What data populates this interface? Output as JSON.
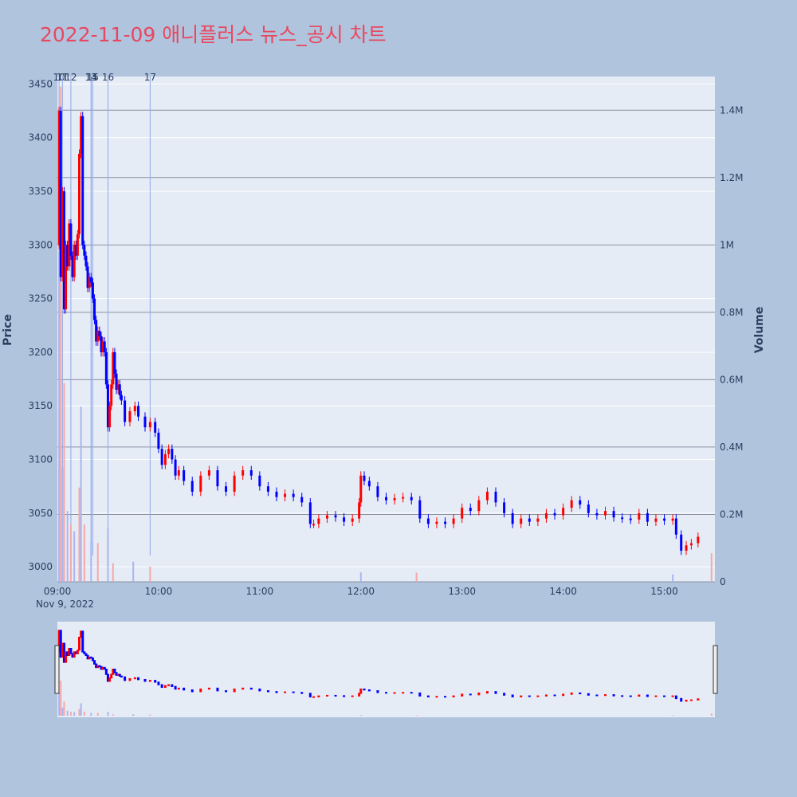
{
  "title": "2022-11-09 애니플러스 뉴스_공시 차트",
  "colors": {
    "page_bg": "#b0c4de",
    "plot_bg": "#e5ecf6",
    "up": "#ff0000",
    "down": "#0000ff",
    "title": "#e8475f",
    "marker_line": "#8fa8e8",
    "grid": "#ffffff",
    "volume_grid": "#8a8fa0"
  },
  "chart_data": {
    "type": "candlestick",
    "xlabel": "",
    "ylabel": "Price",
    "y2label": "Volume",
    "ylim": [
      2986,
      3457
    ],
    "y2lim": [
      0,
      1500000
    ],
    "y_ticks": [
      3000,
      3050,
      3100,
      3150,
      3200,
      3250,
      3300,
      3350,
      3400,
      3450
    ],
    "y2_ticks": [
      0,
      200000,
      400000,
      600000,
      800000,
      1000000,
      1200000,
      1400000
    ],
    "y2_tick_labels": [
      "0",
      "0.2M",
      "0.4M",
      "0.6M",
      "0.8M",
      "1M",
      "1.2M",
      "1.4M"
    ],
    "x_ticks": [
      "09:00",
      "10:00",
      "11:00",
      "12:00",
      "13:00",
      "14:00",
      "15:00"
    ],
    "x_date_label": "Nov 9, 2022",
    "x_range": [
      "09:00",
      "15:30"
    ],
    "news_markers": [
      {
        "label": "10",
        "time": "09:01"
      },
      {
        "label": "11",
        "time": "09:03"
      },
      {
        "label": "12",
        "time": "09:08"
      },
      {
        "label": "13",
        "time": "09:20"
      },
      {
        "label": "14",
        "time": "09:20"
      },
      {
        "label": "15",
        "time": "09:21"
      },
      {
        "label": "16",
        "time": "09:30"
      },
      {
        "label": "17",
        "time": "09:55"
      }
    ],
    "price_path": [
      [
        "09:00",
        3300
      ],
      [
        "09:01",
        3425
      ],
      [
        "09:02",
        3270
      ],
      [
        "09:03",
        3350
      ],
      [
        "09:04",
        3240
      ],
      [
        "09:05",
        3300
      ],
      [
        "09:06",
        3280
      ],
      [
        "09:07",
        3320
      ],
      [
        "09:08",
        3290
      ],
      [
        "09:09",
        3270
      ],
      [
        "09:10",
        3300
      ],
      [
        "09:11",
        3290
      ],
      [
        "09:12",
        3310
      ],
      [
        "09:13",
        3385
      ],
      [
        "09:14",
        3420
      ],
      [
        "09:15",
        3300
      ],
      [
        "09:16",
        3290
      ],
      [
        "09:17",
        3280
      ],
      [
        "09:18",
        3260
      ],
      [
        "09:19",
        3270
      ],
      [
        "09:20",
        3265
      ],
      [
        "09:21",
        3250
      ],
      [
        "09:22",
        3230
      ],
      [
        "09:23",
        3210
      ],
      [
        "09:24",
        3220
      ],
      [
        "09:25",
        3215
      ],
      [
        "09:26",
        3200
      ],
      [
        "09:27",
        3210
      ],
      [
        "09:28",
        3200
      ],
      [
        "09:29",
        3170
      ],
      [
        "09:30",
        3130
      ],
      [
        "09:31",
        3150
      ],
      [
        "09:32",
        3170
      ],
      [
        "09:33",
        3200
      ],
      [
        "09:34",
        3180
      ],
      [
        "09:35",
        3165
      ],
      [
        "09:36",
        3170
      ],
      [
        "09:37",
        3160
      ],
      [
        "09:38",
        3155
      ],
      [
        "09:40",
        3135
      ],
      [
        "09:43",
        3145
      ],
      [
        "09:46",
        3150
      ],
      [
        "09:48",
        3140
      ],
      [
        "09:52",
        3130
      ],
      [
        "09:55",
        3135
      ],
      [
        "09:58",
        3125
      ],
      [
        "10:00",
        3110
      ],
      [
        "10:02",
        3095
      ],
      [
        "10:04",
        3105
      ],
      [
        "10:06",
        3110
      ],
      [
        "10:08",
        3100
      ],
      [
        "10:10",
        3085
      ],
      [
        "10:12",
        3090
      ],
      [
        "10:15",
        3080
      ],
      [
        "10:20",
        3070
      ],
      [
        "10:25",
        3085
      ],
      [
        "10:30",
        3090
      ],
      [
        "10:35",
        3075
      ],
      [
        "10:40",
        3070
      ],
      [
        "10:45",
        3085
      ],
      [
        "10:50",
        3090
      ],
      [
        "10:55",
        3085
      ],
      [
        "11:00",
        3075
      ],
      [
        "11:05",
        3070
      ],
      [
        "11:10",
        3065
      ],
      [
        "11:15",
        3068
      ],
      [
        "11:20",
        3065
      ],
      [
        "11:25",
        3060
      ],
      [
        "11:30",
        3040
      ],
      [
        "11:32",
        3040
      ],
      [
        "11:35",
        3045
      ],
      [
        "11:40",
        3048
      ],
      [
        "11:45",
        3046
      ],
      [
        "11:50",
        3042
      ],
      [
        "11:55",
        3045
      ],
      [
        "11:59",
        3060
      ],
      [
        "12:00",
        3085
      ],
      [
        "12:02",
        3080
      ],
      [
        "12:05",
        3075
      ],
      [
        "12:10",
        3065
      ],
      [
        "12:15",
        3062
      ],
      [
        "12:20",
        3064
      ],
      [
        "12:25",
        3065
      ],
      [
        "12:30",
        3062
      ],
      [
        "12:35",
        3045
      ],
      [
        "12:40",
        3040
      ],
      [
        "12:45",
        3042
      ],
      [
        "12:50",
        3040
      ],
      [
        "12:55",
        3045
      ],
      [
        "13:00",
        3055
      ],
      [
        "13:05",
        3052
      ],
      [
        "13:10",
        3062
      ],
      [
        "13:15",
        3070
      ],
      [
        "13:20",
        3060
      ],
      [
        "13:25",
        3050
      ],
      [
        "13:30",
        3040
      ],
      [
        "13:35",
        3045
      ],
      [
        "13:40",
        3042
      ],
      [
        "13:45",
        3045
      ],
      [
        "13:50",
        3050
      ],
      [
        "13:55",
        3048
      ],
      [
        "14:00",
        3055
      ],
      [
        "14:05",
        3062
      ],
      [
        "14:10",
        3058
      ],
      [
        "14:15",
        3050
      ],
      [
        "14:20",
        3048
      ],
      [
        "14:25",
        3052
      ],
      [
        "14:30",
        3046
      ],
      [
        "14:35",
        3045
      ],
      [
        "14:40",
        3044
      ],
      [
        "14:45",
        3050
      ],
      [
        "14:50",
        3042
      ],
      [
        "14:55",
        3045
      ],
      [
        "15:00",
        3043
      ],
      [
        "15:05",
        3045
      ],
      [
        "15:07",
        3030
      ],
      [
        "15:10",
        3015
      ],
      [
        "15:13",
        3020
      ],
      [
        "15:16",
        3022
      ],
      [
        "15:20",
        3028
      ]
    ],
    "volume_spikes": [
      {
        "time": "09:01",
        "value": 980000
      },
      {
        "time": "09:02",
        "value": 1470000
      },
      {
        "time": "09:03",
        "value": 340000
      },
      {
        "time": "09:04",
        "value": 590000
      },
      {
        "time": "09:06",
        "value": 210000
      },
      {
        "time": "09:08",
        "value": 170000
      },
      {
        "time": "09:10",
        "value": 150000
      },
      {
        "time": "09:13",
        "value": 280000
      },
      {
        "time": "09:14",
        "value": 520000
      },
      {
        "time": "09:16",
        "value": 170000
      },
      {
        "time": "09:20",
        "value": 120000
      },
      {
        "time": "09:24",
        "value": 115000
      },
      {
        "time": "09:30",
        "value": 160000
      },
      {
        "time": "09:33",
        "value": 55000
      },
      {
        "time": "09:45",
        "value": 60000
      },
      {
        "time": "09:55",
        "value": 45000
      },
      {
        "time": "12:00",
        "value": 28000
      },
      {
        "time": "12:33",
        "value": 27000
      },
      {
        "time": "15:05",
        "value": 22000
      },
      {
        "time": "15:28",
        "value": 85000
      }
    ]
  }
}
